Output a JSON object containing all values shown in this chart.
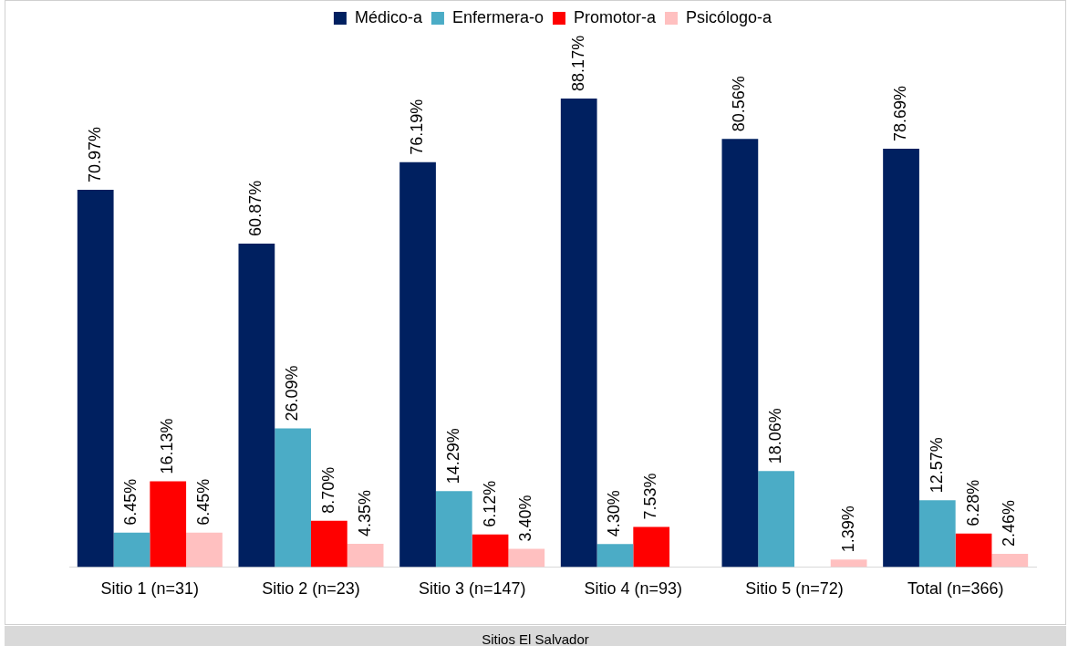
{
  "chart_data": {
    "type": "bar",
    "categories": [
      "Sitio 1 (n=31)",
      "Sitio 2 (n=23)",
      "Sitio 3 (n=147)",
      "Sitio 4 (n=93)",
      "Sitio 5 (n=72)",
      "Total (n=366)"
    ],
    "series": [
      {
        "name": "Médico-a",
        "color": "#002060",
        "values": [
          70.97,
          60.87,
          76.19,
          88.17,
          80.56,
          78.69
        ],
        "value_labels": [
          "70.97%",
          "60.87%",
          "76.19%",
          "88.17%",
          "80.56%",
          "78.69%"
        ]
      },
      {
        "name": "Enfermera-o",
        "color": "#4bacc6",
        "values": [
          6.45,
          26.09,
          14.29,
          4.3,
          18.06,
          12.57
        ],
        "value_labels": [
          "6.45%",
          "26.09%",
          "14.29%",
          "4.30%",
          "18.06%",
          "12.57%"
        ]
      },
      {
        "name": "Promotor-a",
        "color": "#ff0000",
        "values": [
          16.13,
          8.7,
          6.12,
          7.53,
          null,
          6.28
        ],
        "value_labels": [
          "16.13%",
          "8.70%",
          "6.12%",
          "7.53%",
          null,
          "6.28%"
        ]
      },
      {
        "name": "Psicólogo-a",
        "color": "#ffc0c0",
        "values": [
          6.45,
          4.35,
          3.4,
          null,
          1.39,
          2.46
        ],
        "value_labels": [
          "6.45%",
          "4.35%",
          "3.40%",
          null,
          "1.39%",
          "2.46%"
        ]
      }
    ],
    "legend": "top",
    "grid": false,
    "annotations": [
      "Sitios El Salvador"
    ]
  }
}
